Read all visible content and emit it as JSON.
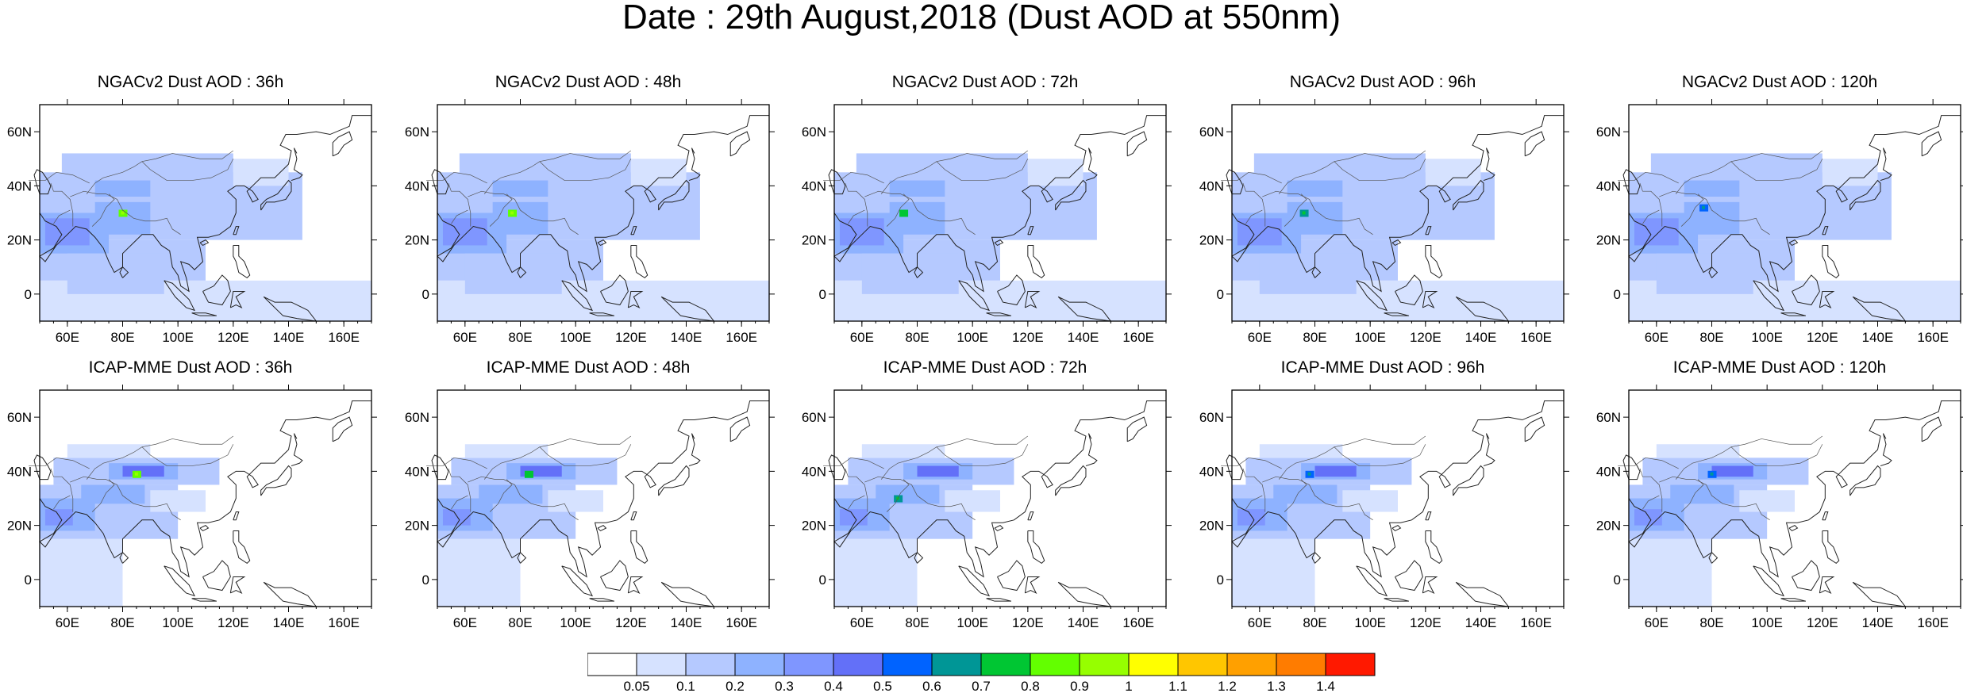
{
  "title": "Date : 29th August,2018 (Dust AOD at 550nm)",
  "rows": [
    {
      "panels": [
        {
          "title": "NGACv2 Dust AOD : 36h",
          "hotspot": [
            80,
            30
          ],
          "hot_level": 0.8
        },
        {
          "title": "NGACv2 Dust AOD : 48h",
          "hotspot": [
            77,
            30
          ],
          "hot_level": 0.8
        },
        {
          "title": "NGACv2 Dust AOD : 72h",
          "hotspot": [
            75,
            30
          ],
          "hot_level": 0.7
        },
        {
          "title": "NGACv2 Dust AOD : 96h",
          "hotspot": [
            76,
            30
          ],
          "hot_level": 0.6
        },
        {
          "title": "NGACv2 Dust AOD : 120h",
          "hotspot": [
            77,
            32
          ],
          "hot_level": 0.5
        }
      ]
    },
    {
      "panels": [
        {
          "title": "ICAP-MME Dust AOD : 36h",
          "hotspot": [
            85,
            39
          ],
          "hot_level": 0.8
        },
        {
          "title": "ICAP-MME Dust AOD : 48h",
          "hotspot": [
            83,
            39
          ],
          "hot_level": 0.7
        },
        {
          "title": "ICAP-MME Dust AOD : 72h",
          "hotspot": [
            73,
            30
          ],
          "hot_level": 0.6
        },
        {
          "title": "ICAP-MME Dust AOD : 96h",
          "hotspot": [
            78,
            39
          ],
          "hot_level": 0.5
        },
        {
          "title": "ICAP-MME Dust AOD : 120h",
          "hotspot": [
            80,
            39
          ],
          "hot_level": 0.5
        }
      ]
    }
  ],
  "map_extent": {
    "lon": [
      50,
      170
    ],
    "lat": [
      -10,
      70
    ]
  },
  "x_ticks": [
    "60E",
    "80E",
    "100E",
    "120E",
    "140E",
    "160E"
  ],
  "x_tick_values": [
    60,
    80,
    100,
    120,
    140,
    160
  ],
  "y_ticks": [
    "0",
    "20N",
    "40N",
    "60N"
  ],
  "y_tick_values": [
    0,
    20,
    40,
    60
  ],
  "colorbar": {
    "labels": [
      "0.05",
      "0.1",
      "0.2",
      "0.3",
      "0.4",
      "0.5",
      "0.6",
      "0.7",
      "0.8",
      "0.9",
      "1",
      "1.1",
      "1.2",
      "1.3",
      "1.4"
    ],
    "colors": [
      "#ffffff",
      "#d6e2ff",
      "#b5c9ff",
      "#8eb2ff",
      "#7f96ff",
      "#6370f8",
      "#0063ff",
      "#009696",
      "#00c633",
      "#63ff00",
      "#96ff00",
      "#ffff00",
      "#ffc600",
      "#ffa000",
      "#ff7c00",
      "#ff1900"
    ]
  }
}
